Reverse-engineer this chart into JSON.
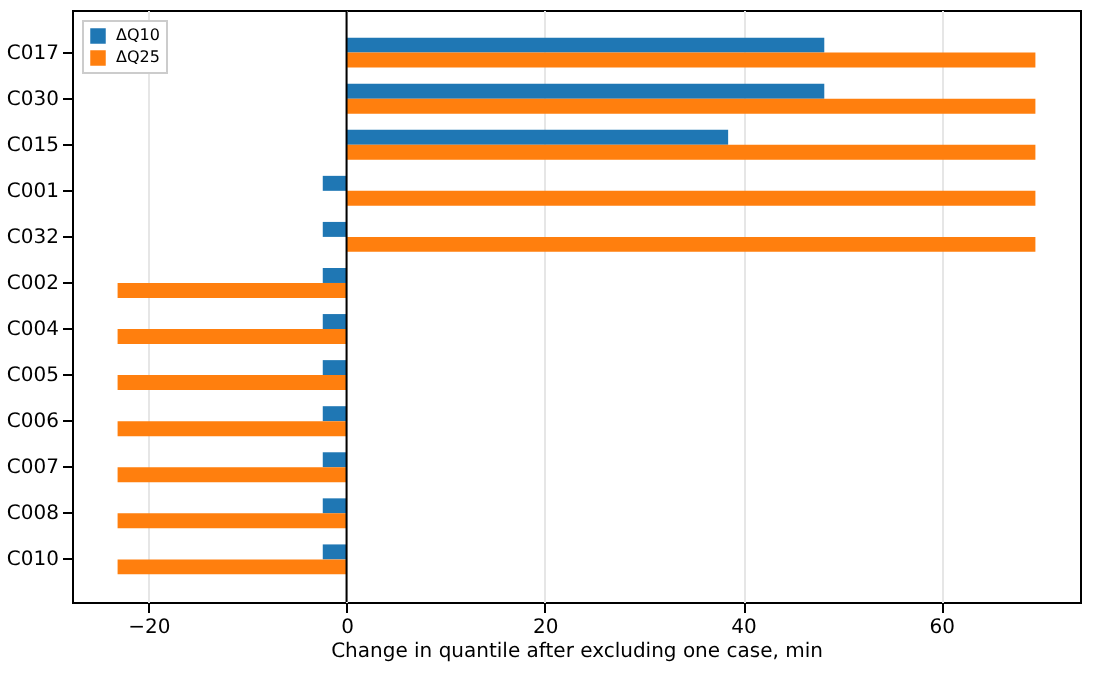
{
  "chart_data": {
    "type": "bar",
    "orientation": "horizontal",
    "xlabel": "Change in quantile after excluding one case, min",
    "categories": [
      "C017",
      "C030",
      "C015",
      "C001",
      "C032",
      "C002",
      "C004",
      "C005",
      "C006",
      "C007",
      "C008",
      "C010"
    ],
    "series": [
      {
        "name": "ΔQ10",
        "color": "#1f77b4",
        "values": [
          48.2,
          48.2,
          38.5,
          -2.4,
          -2.4,
          -2.4,
          -2.4,
          -2.4,
          -2.4,
          -2.4,
          -2.4,
          -2.4
        ]
      },
      {
        "name": "ΔQ25",
        "color": "#ff7f0e",
        "values": [
          69.5,
          69.5,
          69.5,
          69.5,
          69.5,
          -23.1,
          -23.1,
          -23.1,
          -23.1,
          -23.1,
          -23.1,
          -23.1
        ]
      }
    ],
    "xlim": [
      -27.7,
      74
    ],
    "xticks": [
      -20,
      0,
      20,
      40,
      60
    ],
    "grid": "x",
    "legend": "top left",
    "ref_lines": [
      {
        "axis": "x",
        "value": 0,
        "color": "#000000"
      }
    ]
  }
}
